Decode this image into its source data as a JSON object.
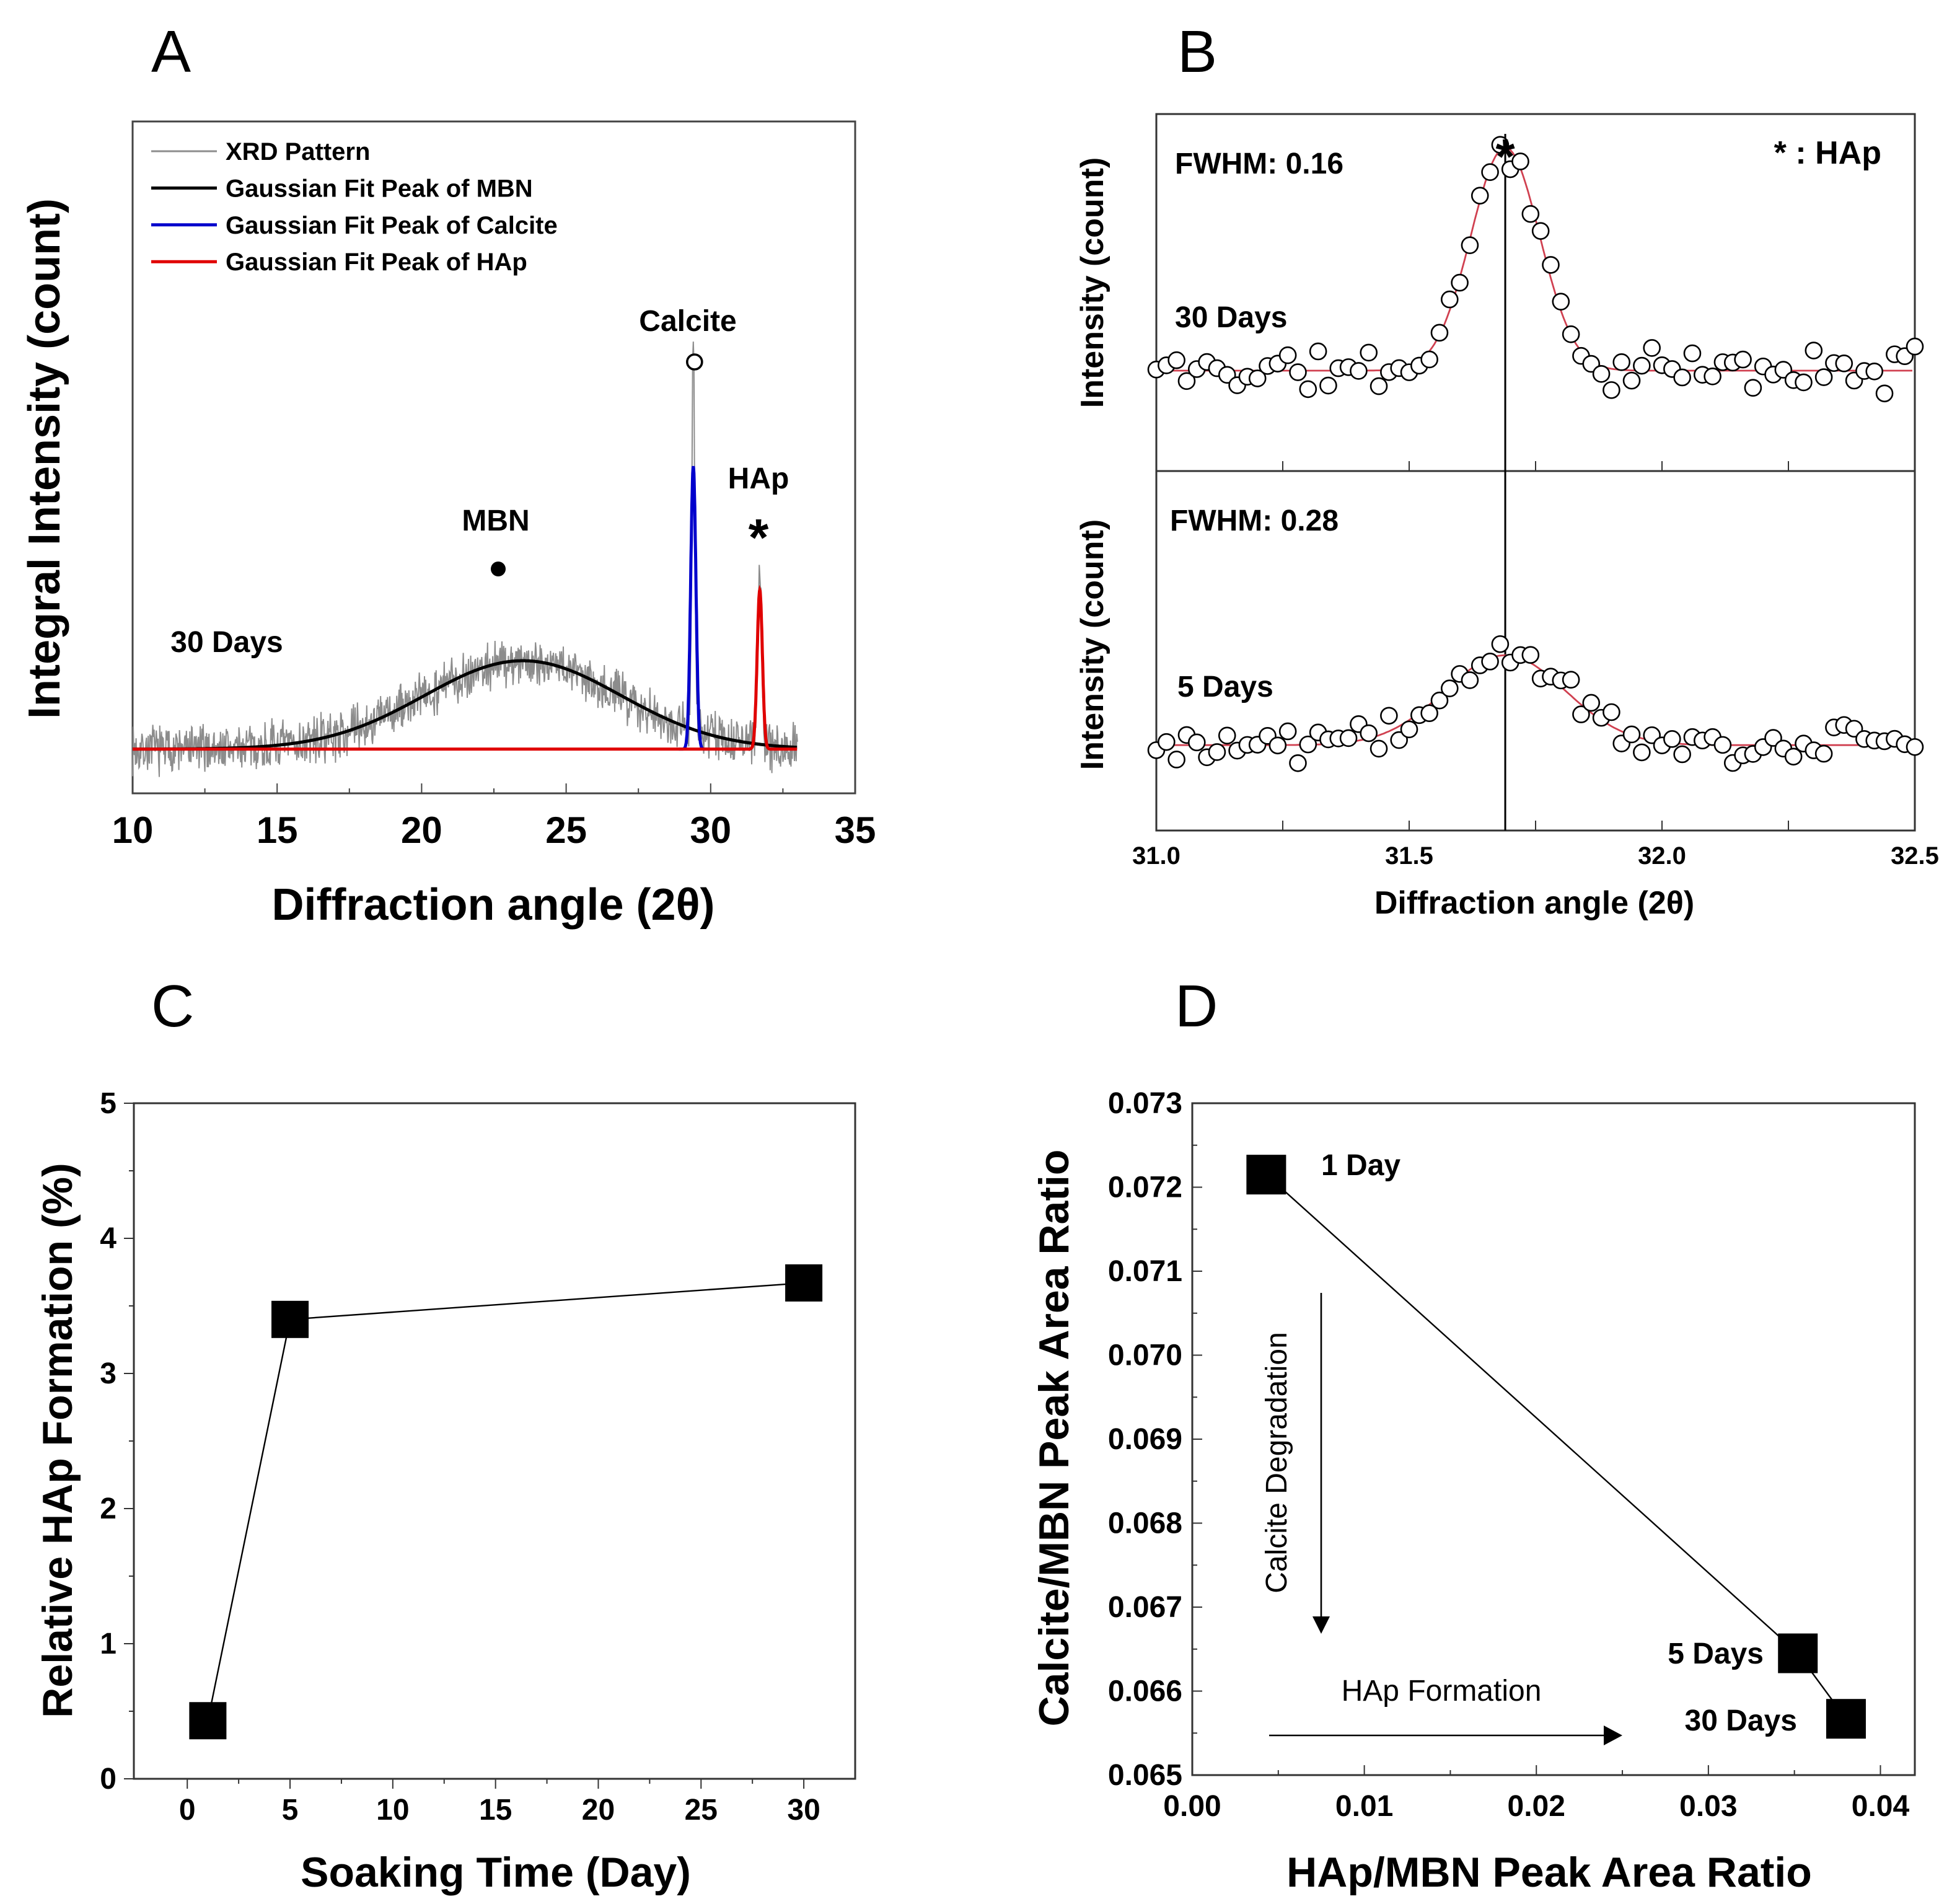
{
  "panel_labels": [
    "A",
    "B",
    "C",
    "D"
  ],
  "chart_data": [
    {
      "id": "A",
      "type": "line",
      "xlabel": "Diffraction angle (2θ)",
      "ylabel": "Integral Intensity (count)",
      "xlim": [
        10,
        35
      ],
      "ylim": [
        -0.5,
        7.1
      ],
      "xticks": [
        10,
        15,
        20,
        25,
        30,
        35
      ],
      "y_scale": "arbitrary units, no tick labels",
      "sample_label": "30 Days",
      "legend": {
        "placement": "top-left",
        "entries": [
          {
            "name": "XRD Pattern",
            "color": "#8c8c8c"
          },
          {
            "name": "Gaussian Fit Peak of MBN",
            "color": "#000000"
          },
          {
            "name": "Gaussian Fit Peak of Calcite",
            "color": "#0000cc"
          },
          {
            "name": "Gaussian Fit Peak of HAp",
            "color": "#e00000"
          }
        ]
      },
      "pattern_range": [
        10,
        33
      ],
      "peaks": [
        {
          "name": "MBN",
          "center": 23.5,
          "fit_height": 1.0,
          "sigma": 3.4,
          "observed_max": 1.6
        },
        {
          "name": "Calcite",
          "center": 29.4,
          "fit_height": 3.2,
          "sigma": 0.09,
          "observed_max": 4.4
        },
        {
          "name": "HAp",
          "center": 31.7,
          "fit_height": 1.8,
          "sigma": 0.09,
          "observed_max": 2.1
        }
      ],
      "annotations": [
        {
          "text": "MBN",
          "marker": "filled-circle"
        },
        {
          "text": "Calcite",
          "marker": "open-circle"
        },
        {
          "text": "HAp",
          "marker": "asterisk"
        }
      ]
    },
    {
      "id": "B",
      "type": "scatter",
      "xlabel": "Diffraction angle (2θ)",
      "ylabel": "Intensity (count)",
      "xlim": [
        31.0,
        32.5
      ],
      "xticks": [
        "31.0",
        "31.5",
        "32.0",
        "32.5"
      ],
      "reference_line_x": 31.69,
      "legend_text": "* : HAp",
      "marker_asterisk": "*",
      "fit_color": "#d04050",
      "subplots": [
        {
          "sample": "30 Days",
          "fwhm_label": "FWHM: 0.16",
          "fwhm": 0.16,
          "center": 31.69,
          "peak_height": 1.0,
          "noise": 0.12,
          "ylim": [
            -0.45,
            1.15
          ]
        },
        {
          "sample": "5 Days",
          "fwhm_label": "FWHM: 0.28",
          "fwhm": 0.28,
          "center": 31.69,
          "peak_height": 0.4,
          "noise": 0.1,
          "ylim": [
            -0.38,
            1.22
          ]
        }
      ]
    },
    {
      "id": "C",
      "type": "line",
      "xlabel": "Soaking Time (Day)",
      "ylabel": "Relative HAp Formation (%)",
      "xlim": [
        -2.6,
        32.5
      ],
      "ylim": [
        0,
        5
      ],
      "xticks": [
        0,
        5,
        10,
        15,
        20,
        25,
        30
      ],
      "yticks": [
        0,
        1,
        2,
        3,
        4,
        5
      ],
      "x": [
        1,
        5,
        30
      ],
      "values": [
        0.43,
        3.4,
        3.67
      ]
    },
    {
      "id": "D",
      "type": "line",
      "xlabel": "HAp/MBN Peak Area Ratio",
      "ylabel": "Calcite/MBN Peak Area Ratio",
      "xlim": [
        0,
        0.042
      ],
      "ylim": [
        0.065,
        0.073
      ],
      "xticks": [
        "0.00",
        "0.01",
        "0.02",
        "0.03",
        "0.04"
      ],
      "yticks": [
        "0.065",
        "0.066",
        "0.067",
        "0.068",
        "0.069",
        "0.070",
        "0.071",
        "0.072",
        "0.073"
      ],
      "points": [
        {
          "label": "1 Day",
          "x": 0.0043,
          "y": 0.07215
        },
        {
          "label": "5 Days",
          "x": 0.0352,
          "y": 0.06645
        },
        {
          "label": "30 Days",
          "x": 0.038,
          "y": 0.06567
        }
      ],
      "arrows": [
        {
          "text": "Calcite Degradation",
          "direction": "down"
        },
        {
          "text": "HAp Formation",
          "direction": "right"
        }
      ]
    }
  ]
}
